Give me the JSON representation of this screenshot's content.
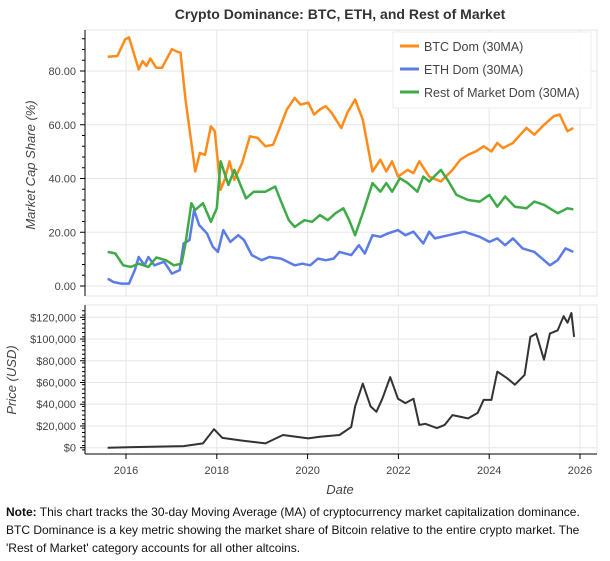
{
  "chart_data": [
    {
      "type": "line",
      "title": "Crypto Dominance: BTC, ETH, and Rest of Market",
      "ylabel": "Market Cap Share (%)",
      "ylim": [
        -3,
        96
      ],
      "yticks": [
        "0.00",
        "20.00",
        "40.00",
        "60.00",
        "80.00"
      ],
      "ytick_values": [
        0,
        20,
        40,
        60,
        80
      ],
      "grid": true,
      "legend": "top-right",
      "series": [
        {
          "name": "BTC Dom (30MA)",
          "color": "#ff8c1a",
          "points": [
            [
              "2015-08-06",
              85.3
            ],
            [
              "2015-10-23",
              85.6
            ],
            [
              "2015-12-25",
              91.8
            ],
            [
              "2016-01-25",
              92.5
            ],
            [
              "2016-04-12",
              80.6
            ],
            [
              "2016-05-13",
              83.7
            ],
            [
              "2016-06-14",
              81.9
            ],
            [
              "2016-07-15",
              84.6
            ],
            [
              "2016-09-01",
              81.2
            ],
            [
              "2016-10-17",
              81.2
            ],
            [
              "2017-01-05",
              88.1
            ],
            [
              "2017-02-21",
              87.1
            ],
            [
              "2017-03-13",
              86.8
            ],
            [
              "2017-04-23",
              69.4
            ],
            [
              "2017-06-10",
              53.2
            ],
            [
              "2017-07-10",
              42.6
            ],
            [
              "2017-08-17",
              49.5
            ],
            [
              "2017-09-28",
              48.8
            ],
            [
              "2017-11-14",
              59.4
            ],
            [
              "2017-12-15",
              57.6
            ],
            [
              "2018-02-01",
              35.8
            ],
            [
              "2018-03-03",
              39.5
            ],
            [
              "2018-04-12",
              46.4
            ],
            [
              "2018-05-20",
              39.5
            ],
            [
              "2018-07-22",
              45.7
            ],
            [
              "2018-09-24",
              55.7
            ],
            [
              "2018-11-25",
              55.1
            ],
            [
              "2019-01-27",
              52.0
            ],
            [
              "2019-03-29",
              52.6
            ],
            [
              "2019-05-15",
              58.2
            ],
            [
              "2019-07-17",
              65.7
            ],
            [
              "2019-09-19",
              70.0
            ],
            [
              "2019-11-05",
              67.5
            ],
            [
              "2020-01-07",
              68.2
            ],
            [
              "2020-02-23",
              63.8
            ],
            [
              "2020-04-09",
              65.7
            ],
            [
              "2020-05-26",
              66.9
            ],
            [
              "2020-07-12",
              64.4
            ],
            [
              "2020-09-29",
              58.8
            ],
            [
              "2020-11-16",
              64.4
            ],
            [
              "2021-01-18",
              69.4
            ],
            [
              "2021-03-19",
              61.9
            ],
            [
              "2021-06-06",
              42.6
            ],
            [
              "2021-08-08",
              47.0
            ],
            [
              "2021-09-25",
              42.6
            ],
            [
              "2021-11-11",
              46.4
            ],
            [
              "2021-12-28",
              40.7
            ],
            [
              "2022-03-15",
              43.2
            ],
            [
              "2022-05-01",
              42.0
            ],
            [
              "2022-06-17",
              46.4
            ],
            [
              "2022-09-05",
              40.7
            ],
            [
              "2022-12-08",
              38.9
            ],
            [
              "2023-03-10",
              43.2
            ],
            [
              "2023-05-12",
              47.0
            ],
            [
              "2023-07-14",
              48.8
            ],
            [
              "2023-09-15",
              50.1
            ],
            [
              "2023-11-17",
              52.0
            ],
            [
              "2024-01-19",
              50.1
            ],
            [
              "2024-03-05",
              53.2
            ],
            [
              "2024-04-21",
              51.3
            ],
            [
              "2024-07-09",
              53.2
            ],
            [
              "2024-08-26",
              55.7
            ],
            [
              "2024-10-27",
              58.8
            ],
            [
              "2024-12-29",
              56.3
            ],
            [
              "2025-03-16",
              60.0
            ],
            [
              "2025-06-03",
              63.2
            ],
            [
              "2025-07-20",
              63.8
            ],
            [
              "2025-09-22",
              57.6
            ],
            [
              "2025-11-08",
              58.8
            ]
          ]
        },
        {
          "name": "ETH Dom (30MA)",
          "color": "#5b7be6",
          "points": [
            [
              "2015-08-06",
              2.7
            ],
            [
              "2015-09-21",
              1.5
            ],
            [
              "2015-11-24",
              0.9
            ],
            [
              "2016-01-25",
              0.9
            ],
            [
              "2016-03-11",
              5.9
            ],
            [
              "2016-04-12",
              10.8
            ],
            [
              "2016-05-28",
              7.7
            ],
            [
              "2016-06-29",
              10.8
            ],
            [
              "2016-08-16",
              7.7
            ],
            [
              "2016-11-03",
              9.0
            ],
            [
              "2017-01-05",
              4.6
            ],
            [
              "2017-03-07",
              5.9
            ],
            [
              "2017-04-08",
              15.8
            ],
            [
              "2017-05-25",
              17.1
            ],
            [
              "2017-07-01",
              28.3
            ],
            [
              "2017-08-11",
              22.7
            ],
            [
              "2017-10-13",
              19.6
            ],
            [
              "2017-11-30",
              14.6
            ],
            [
              "2018-01-10",
              12.7
            ],
            [
              "2018-02-23",
              20.8
            ],
            [
              "2018-04-18",
              16.4
            ],
            [
              "2018-06-21",
              18.9
            ],
            [
              "2018-08-07",
              17.1
            ],
            [
              "2018-10-09",
              11.5
            ],
            [
              "2018-12-27",
              9.6
            ],
            [
              "2019-02-28",
              10.8
            ],
            [
              "2019-05-31",
              10.2
            ],
            [
              "2019-09-19",
              7.7
            ],
            [
              "2019-11-20",
              8.3
            ],
            [
              "2020-01-22",
              7.7
            ],
            [
              "2020-03-24",
              10.2
            ],
            [
              "2020-05-26",
              9.6
            ],
            [
              "2020-07-28",
              10.2
            ],
            [
              "2020-09-14",
              12.7
            ],
            [
              "2020-12-17",
              11.5
            ],
            [
              "2021-02-18",
              15.2
            ],
            [
              "2021-04-05",
              12.1
            ],
            [
              "2021-06-06",
              18.9
            ],
            [
              "2021-08-08",
              18.3
            ],
            [
              "2021-10-10",
              19.6
            ],
            [
              "2021-12-28",
              20.8
            ],
            [
              "2022-02-27",
              18.9
            ],
            [
              "2022-05-01",
              20.2
            ],
            [
              "2022-07-19",
              15.8
            ],
            [
              "2022-09-05",
              20.2
            ],
            [
              "2022-10-21",
              17.7
            ],
            [
              "2023-02-09",
              18.9
            ],
            [
              "2023-06-13",
              20.2
            ],
            [
              "2023-10-16",
              18.3
            ],
            [
              "2024-01-03",
              16.4
            ],
            [
              "2024-03-05",
              17.7
            ],
            [
              "2024-05-07",
              15.2
            ],
            [
              "2024-07-09",
              17.7
            ],
            [
              "2024-09-26",
              14.0
            ],
            [
              "2024-12-29",
              12.7
            ],
            [
              "2025-03-16",
              9.6
            ],
            [
              "2025-05-02",
              7.7
            ],
            [
              "2025-07-04",
              9.6
            ],
            [
              "2025-09-06",
              14.0
            ],
            [
              "2025-11-08",
              12.7
            ]
          ]
        },
        {
          "name": "Rest of Market Dom (30MA)",
          "color": "#3faa48",
          "points": [
            [
              "2015-08-06",
              12.7
            ],
            [
              "2015-10-07",
              12.1
            ],
            [
              "2015-12-09",
              7.7
            ],
            [
              "2016-02-10",
              7.1
            ],
            [
              "2016-04-12",
              8.3
            ],
            [
              "2016-06-29",
              7.1
            ],
            [
              "2016-09-01",
              10.6
            ],
            [
              "2016-11-18",
              9.6
            ],
            [
              "2017-01-20",
              7.7
            ],
            [
              "2017-03-22",
              8.3
            ],
            [
              "2017-04-23",
              15.8
            ],
            [
              "2017-06-10",
              30.8
            ],
            [
              "2017-07-10",
              28.3
            ],
            [
              "2017-09-12",
              30.8
            ],
            [
              "2017-11-14",
              23.9
            ],
            [
              "2018-01-01",
              28.9
            ],
            [
              "2018-02-01",
              46.4
            ],
            [
              "2018-04-03",
              37.6
            ],
            [
              "2018-05-20",
              43.2
            ],
            [
              "2018-08-23",
              32.6
            ],
            [
              "2018-10-25",
              35.1
            ],
            [
              "2019-01-27",
              35.1
            ],
            [
              "2019-04-14",
              37.0
            ],
            [
              "2019-05-31",
              31.4
            ],
            [
              "2019-08-02",
              24.5
            ],
            [
              "2019-09-19",
              22.0
            ],
            [
              "2019-12-06",
              24.5
            ],
            [
              "2020-02-07",
              23.9
            ],
            [
              "2020-04-09",
              26.4
            ],
            [
              "2020-06-11",
              24.5
            ],
            [
              "2020-08-13",
              27.1
            ],
            [
              "2020-10-15",
              28.9
            ],
            [
              "2020-12-01",
              24.5
            ],
            [
              "2021-01-18",
              18.9
            ],
            [
              "2021-03-19",
              27.1
            ],
            [
              "2021-06-06",
              38.3
            ],
            [
              "2021-08-08",
              35.1
            ],
            [
              "2021-09-25",
              38.3
            ],
            [
              "2021-11-11",
              35.1
            ],
            [
              "2022-01-13",
              40.1
            ],
            [
              "2022-03-15",
              38.3
            ],
            [
              "2022-06-02",
              35.1
            ],
            [
              "2022-07-19",
              40.7
            ],
            [
              "2022-09-05",
              38.9
            ],
            [
              "2022-12-08",
              43.2
            ],
            [
              "2023-02-09",
              38.9
            ],
            [
              "2023-04-11",
              33.9
            ],
            [
              "2023-07-14",
              32.0
            ],
            [
              "2023-10-16",
              31.4
            ],
            [
              "2024-01-03",
              33.9
            ],
            [
              "2024-03-05",
              29.5
            ],
            [
              "2024-05-07",
              33.3
            ],
            [
              "2024-07-25",
              29.5
            ],
            [
              "2024-10-27",
              28.9
            ],
            [
              "2024-12-29",
              31.4
            ],
            [
              "2025-03-16",
              30.2
            ],
            [
              "2025-07-04",
              27.1
            ],
            [
              "2025-09-22",
              28.9
            ],
            [
              "2025-11-08",
              28.5
            ]
          ]
        }
      ]
    },
    {
      "type": "line",
      "xlabel": "Date",
      "ylabel": "Price (USD)",
      "ylim": [
        -2500,
        128000
      ],
      "xlim": [
        "2015-04-01",
        "2026-04-01"
      ],
      "yticks": [
        "$0",
        "$20,000",
        "$40,000",
        "$60,000",
        "$80,000",
        "$100,000",
        "$120,000"
      ],
      "ytick_values": [
        0,
        20000,
        40000,
        60000,
        80000,
        100000,
        120000
      ],
      "xticks": [
        "2016",
        "2018",
        "2020",
        "2022",
        "2024",
        "2026"
      ],
      "grid": true,
      "series": [
        {
          "color": "#333333",
          "points": [
            [
              "2015-08-06",
              0
            ],
            [
              "2017-04-08",
              1500
            ],
            [
              "2017-09-12",
              4000
            ],
            [
              "2017-12-09",
              17000
            ],
            [
              "2018-02-16",
              9000
            ],
            [
              "2018-07-22",
              6500
            ],
            [
              "2019-01-27",
              4000
            ],
            [
              "2019-06-16",
              11700
            ],
            [
              "2020-01-07",
              8600
            ],
            [
              "2020-04-09",
              10000
            ],
            [
              "2020-09-14",
              11700
            ],
            [
              "2020-12-17",
              19000
            ],
            [
              "2021-01-18",
              38000
            ],
            [
              "2021-03-19",
              59000
            ],
            [
              "2021-05-21",
              38000
            ],
            [
              "2021-07-07",
              33000
            ],
            [
              "2021-08-24",
              45000
            ],
            [
              "2021-10-26",
              65000
            ],
            [
              "2021-12-28",
              45000
            ],
            [
              "2022-02-27",
              41000
            ],
            [
              "2022-05-01",
              45000
            ],
            [
              "2022-06-17",
              21000
            ],
            [
              "2022-08-04",
              22000
            ],
            [
              "2022-11-06",
              18000
            ],
            [
              "2023-01-08",
              21000
            ],
            [
              "2023-03-10",
              30000
            ],
            [
              "2023-07-14",
              27000
            ],
            [
              "2023-09-30",
              32000
            ],
            [
              "2023-11-17",
              44000
            ],
            [
              "2024-01-19",
              44000
            ],
            [
              "2024-03-05",
              70000
            ],
            [
              "2024-05-23",
              64000
            ],
            [
              "2024-07-25",
              58000
            ],
            [
              "2024-10-12",
              67000
            ],
            [
              "2024-11-28",
              102000
            ],
            [
              "2025-01-14",
              105000
            ],
            [
              "2025-03-16",
              81000
            ],
            [
              "2025-05-02",
              105000
            ],
            [
              "2025-07-04",
              108000
            ],
            [
              "2025-08-21",
              121000
            ],
            [
              "2025-09-22",
              115000
            ],
            [
              "2025-10-23",
              124000
            ],
            [
              "2025-11-14",
              102000
            ]
          ]
        }
      ]
    }
  ],
  "note": {
    "label": "Note:",
    "text": " This chart tracks the 30-day Moving Average (MA) of cryptocurrency market capitalization dominance. BTC Dominance is a key metric showing the market share of Bitcoin relative to the entire crypto market. The 'Rest of Market' category accounts for all other altcoins."
  }
}
